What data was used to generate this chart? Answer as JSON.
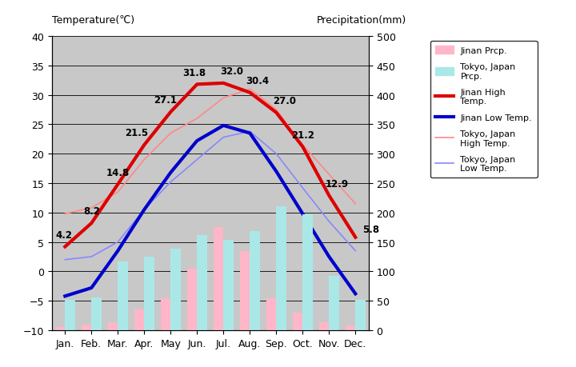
{
  "months": [
    "Jan.",
    "Feb.",
    "Mar.",
    "Apr.",
    "May",
    "Jun.",
    "Jul.",
    "Aug.",
    "Sep.",
    "Oct.",
    "Nov.",
    "Dec."
  ],
  "jinan_high": [
    4.2,
    8.2,
    14.8,
    21.5,
    27.1,
    31.8,
    32.0,
    30.4,
    27.0,
    21.2,
    12.9,
    5.8
  ],
  "jinan_low": [
    -4.2,
    -2.8,
    3.5,
    10.5,
    16.8,
    22.2,
    24.8,
    23.5,
    17.0,
    9.8,
    2.5,
    -3.8
  ],
  "tokyo_high": [
    9.8,
    10.8,
    13.5,
    19.0,
    23.5,
    26.0,
    29.5,
    31.0,
    27.5,
    21.5,
    16.5,
    11.5
  ],
  "tokyo_low": [
    2.0,
    2.5,
    5.0,
    10.5,
    15.2,
    19.0,
    22.8,
    23.8,
    20.0,
    14.2,
    8.5,
    3.5
  ],
  "jinan_prcp_mm": [
    6,
    10,
    14,
    35,
    55,
    105,
    175,
    135,
    55,
    30,
    14,
    8
  ],
  "tokyo_prcp_mm": [
    52,
    56,
    117,
    125,
    138,
    162,
    154,
    168,
    210,
    197,
    93,
    51
  ],
  "jinan_high_labels": [
    4.2,
    8.2,
    14.8,
    21.5,
    27.1,
    31.8,
    32.0,
    30.4,
    27.0,
    21.2,
    12.9,
    5.8
  ],
  "title_left": "Temperature(℃)",
  "title_right": "Precipitation(mm)",
  "temp_ylim": [
    -10,
    40
  ],
  "prcp_ylim": [
    0,
    500
  ],
  "jinan_high_color": "#dd0000",
  "jinan_low_color": "#0000cc",
  "tokyo_high_color": "#ff8888",
  "tokyo_low_color": "#8888ff",
  "jinan_prcp_color": "#ffb6c8",
  "tokyo_prcp_color": "#aae8e8",
  "bg_color": "#c8c8c8",
  "plot_bg": "#c8c8c8",
  "legend_fontsize": 8,
  "tick_fontsize": 9,
  "axis_label_fontsize": 9
}
